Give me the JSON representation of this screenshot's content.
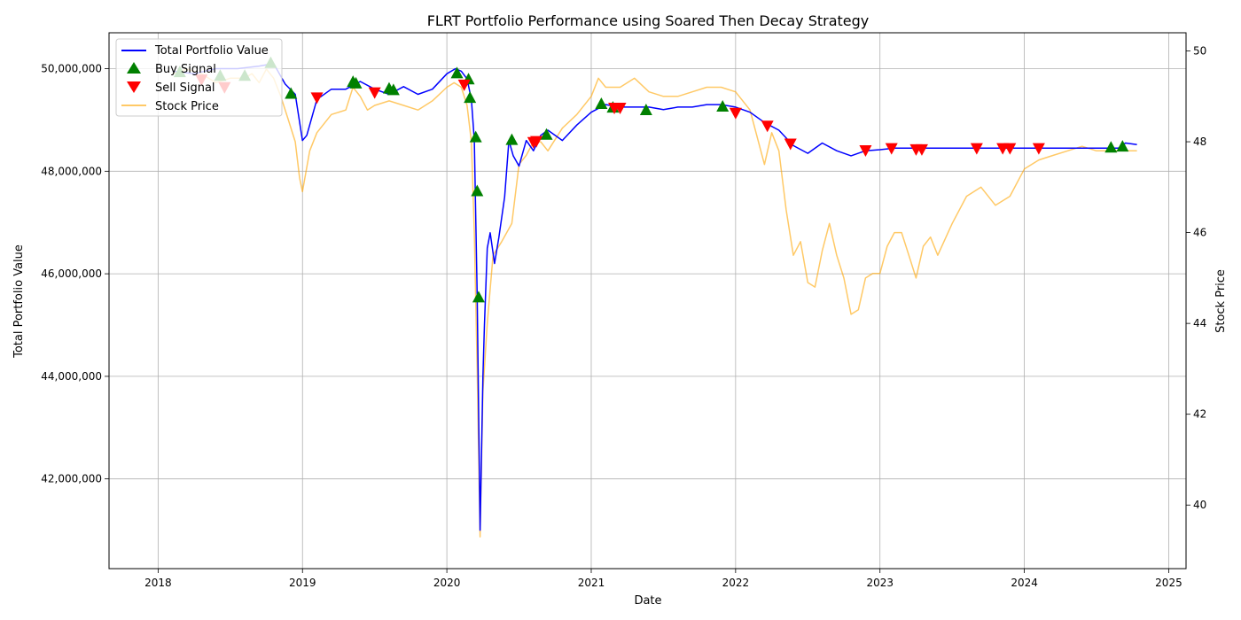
{
  "chart_data": {
    "type": "line",
    "title": "FLRT Portfolio Performance using Soared Then Decay Strategy",
    "xlabel": "Date",
    "ylabel": "Total Portfolio Value",
    "ylabel_right": "Stock Price",
    "xlim": [
      2017.66,
      2025.12
    ],
    "ylim": [
      40250000,
      50700000
    ],
    "ylim_right": [
      38.6,
      50.4
    ],
    "x_ticks": [
      2018,
      2019,
      2020,
      2021,
      2022,
      2023,
      2024,
      2025
    ],
    "x_tick_labels": [
      "2018",
      "2019",
      "2020",
      "2021",
      "2022",
      "2023",
      "2024",
      "2025"
    ],
    "y_ticks": [
      42000000,
      44000000,
      46000000,
      48000000,
      50000000
    ],
    "y_tick_labels": [
      "42,000,000",
      "44,000,000",
      "46,000,000",
      "48,000,000",
      "50,000,000"
    ],
    "y_ticks_right": [
      40,
      42,
      44,
      46,
      48,
      50
    ],
    "y_tick_labels_right": [
      "40",
      "42",
      "44",
      "46",
      "48",
      "50"
    ],
    "grid": true,
    "legend_position": "top-left",
    "legend": [
      "Total Portfolio Value",
      "Buy Signal",
      "Sell Signal",
      "Stock Price"
    ],
    "colors": {
      "portfolio": "#0000ff",
      "buy": "#008000",
      "sell": "#ff0000",
      "stock": "#ffa500"
    },
    "series": [
      {
        "name": "Total Portfolio Value",
        "axis": "left",
        "x": [
          2018.1,
          2018.25,
          2018.4,
          2018.55,
          2018.7,
          2018.8,
          2018.88,
          2018.95,
          2019.0,
          2019.03,
          2019.1,
          2019.2,
          2019.3,
          2019.4,
          2019.5,
          2019.6,
          2019.7,
          2019.8,
          2019.9,
          2020.0,
          2020.06,
          2020.1,
          2020.14,
          2020.17,
          2020.19,
          2020.21,
          2020.23,
          2020.24,
          2020.25,
          2020.26,
          2020.28,
          2020.3,
          2020.33,
          2020.36,
          2020.4,
          2020.43,
          2020.46,
          2020.5,
          2020.55,
          2020.6,
          2020.65,
          2020.7,
          2020.8,
          2020.9,
          2021.0,
          2021.1,
          2021.2,
          2021.3,
          2021.4,
          2021.5,
          2021.6,
          2021.7,
          2021.8,
          2021.9,
          2022.0,
          2022.1,
          2022.2,
          2022.3,
          2022.4,
          2022.5,
          2022.6,
          2022.7,
          2022.8,
          2022.9,
          2023.0,
          2023.1,
          2023.3,
          2023.5,
          2023.7,
          2023.9,
          2024.1,
          2024.3,
          2024.5,
          2024.6,
          2024.65,
          2024.7,
          2024.78
        ],
        "values": [
          49950000,
          49900000,
          50000000,
          50000000,
          50050000,
          50100000,
          49700000,
          49500000,
          48600000,
          48700000,
          49400000,
          49600000,
          49600000,
          49750000,
          49600000,
          49500000,
          49650000,
          49500000,
          49600000,
          49900000,
          50000000,
          49950000,
          49800000,
          49400000,
          48600000,
          45600000,
          41000000,
          42500000,
          44000000,
          45000000,
          46500000,
          46800000,
          46200000,
          46700000,
          47500000,
          48600000,
          48300000,
          48100000,
          48600000,
          48400000,
          48700000,
          48800000,
          48600000,
          48900000,
          49150000,
          49300000,
          49250000,
          49250000,
          49250000,
          49200000,
          49250000,
          49250000,
          49300000,
          49300000,
          49250000,
          49150000,
          48950000,
          48800000,
          48500000,
          48350000,
          48550000,
          48400000,
          48300000,
          48400000,
          48420000,
          48450000,
          48450000,
          48450000,
          48450000,
          48450000,
          48450000,
          48450000,
          48450000,
          48450000,
          48450000,
          48550000,
          48520000
        ]
      },
      {
        "name": "Stock Price",
        "axis": "right",
        "x": [
          2018.1,
          2018.2,
          2018.3,
          2018.4,
          2018.5,
          2018.6,
          2018.65,
          2018.7,
          2018.75,
          2018.8,
          2018.85,
          2018.9,
          2018.95,
          2018.98,
          2019.0,
          2019.05,
          2019.1,
          2019.2,
          2019.3,
          2019.35,
          2019.4,
          2019.45,
          2019.5,
          2019.6,
          2019.7,
          2019.8,
          2019.9,
          2020.0,
          2020.05,
          2020.1,
          2020.14,
          2020.17,
          2020.19,
          2020.21,
          2020.23,
          2020.25,
          2020.28,
          2020.32,
          2020.38,
          2020.45,
          2020.5,
          2020.55,
          2020.6,
          2020.65,
          2020.7,
          2020.8,
          2020.9,
          2021.0,
          2021.05,
          2021.1,
          2021.2,
          2021.3,
          2021.4,
          2021.5,
          2021.6,
          2021.7,
          2021.8,
          2021.9,
          2022.0,
          2022.1,
          2022.2,
          2022.25,
          2022.3,
          2022.35,
          2022.4,
          2022.45,
          2022.5,
          2022.55,
          2022.6,
          2022.65,
          2022.7,
          2022.75,
          2022.8,
          2022.85,
          2022.9,
          2022.95,
          2023.0,
          2023.05,
          2023.1,
          2023.15,
          2023.2,
          2023.25,
          2023.3,
          2023.35,
          2023.4,
          2023.5,
          2023.6,
          2023.7,
          2023.8,
          2023.9,
          2024.0,
          2024.1,
          2024.2,
          2024.3,
          2024.4,
          2024.5,
          2024.6,
          2024.7,
          2024.78
        ],
        "values": [
          49.5,
          49.6,
          49.5,
          49.3,
          49.4,
          49.4,
          49.5,
          49.3,
          49.6,
          49.4,
          49.0,
          48.5,
          48.0,
          47.2,
          46.9,
          47.8,
          48.2,
          48.6,
          48.7,
          49.2,
          49.0,
          48.7,
          48.8,
          48.9,
          48.8,
          48.7,
          48.9,
          49.2,
          49.3,
          49.2,
          48.8,
          48.0,
          46.0,
          43.0,
          39.3,
          42.5,
          44.0,
          45.5,
          45.8,
          46.2,
          47.5,
          47.7,
          48.0,
          48.0,
          47.8,
          48.3,
          48.6,
          49.0,
          49.4,
          49.2,
          49.2,
          49.4,
          49.1,
          49.0,
          49.0,
          49.1,
          49.2,
          49.2,
          49.1,
          48.7,
          47.5,
          48.2,
          47.8,
          46.5,
          45.5,
          45.8,
          44.9,
          44.8,
          45.6,
          46.2,
          45.5,
          45.0,
          44.2,
          44.3,
          45.0,
          45.1,
          45.1,
          45.7,
          46.0,
          46.0,
          45.5,
          45.0,
          45.7,
          45.9,
          45.5,
          46.2,
          46.8,
          47.0,
          46.6,
          46.8,
          47.4,
          47.6,
          47.7,
          47.8,
          47.9,
          47.8,
          47.8,
          47.8,
          47.8
        ]
      }
    ],
    "buy_signals": [
      {
        "x": 2018.15,
        "y": 49920000
      },
      {
        "x": 2018.43,
        "y": 49850000
      },
      {
        "x": 2018.6,
        "y": 49850000
      },
      {
        "x": 2018.78,
        "y": 50100000
      },
      {
        "x": 2018.92,
        "y": 49500000
      },
      {
        "x": 2019.35,
        "y": 49730000
      },
      {
        "x": 2019.37,
        "y": 49700000
      },
      {
        "x": 2019.6,
        "y": 49600000
      },
      {
        "x": 2019.63,
        "y": 49570000
      },
      {
        "x": 2020.07,
        "y": 49900000
      },
      {
        "x": 2020.15,
        "y": 49780000
      },
      {
        "x": 2020.16,
        "y": 49420000
      },
      {
        "x": 2020.2,
        "y": 48650000
      },
      {
        "x": 2020.21,
        "y": 47600000
      },
      {
        "x": 2020.22,
        "y": 45530000
      },
      {
        "x": 2020.45,
        "y": 48600000
      },
      {
        "x": 2020.69,
        "y": 48700000
      },
      {
        "x": 2021.07,
        "y": 49300000
      },
      {
        "x": 2021.15,
        "y": 49230000
      },
      {
        "x": 2021.38,
        "y": 49180000
      },
      {
        "x": 2021.91,
        "y": 49250000
      },
      {
        "x": 2024.6,
        "y": 48450000
      },
      {
        "x": 2024.68,
        "y": 48470000
      }
    ],
    "sell_signals": [
      {
        "x": 2018.3,
        "y": 49800000
      },
      {
        "x": 2018.46,
        "y": 49650000
      },
      {
        "x": 2019.1,
        "y": 49450000
      },
      {
        "x": 2019.5,
        "y": 49550000
      },
      {
        "x": 2020.12,
        "y": 49700000
      },
      {
        "x": 2020.6,
        "y": 48580000
      },
      {
        "x": 2020.62,
        "y": 48600000
      },
      {
        "x": 2021.16,
        "y": 49250000
      },
      {
        "x": 2021.2,
        "y": 49250000
      },
      {
        "x": 2022.0,
        "y": 49150000
      },
      {
        "x": 2022.22,
        "y": 48900000
      },
      {
        "x": 2022.38,
        "y": 48550000
      },
      {
        "x": 2022.9,
        "y": 48420000
      },
      {
        "x": 2023.08,
        "y": 48460000
      },
      {
        "x": 2023.25,
        "y": 48440000
      },
      {
        "x": 2023.29,
        "y": 48440000
      },
      {
        "x": 2023.67,
        "y": 48460000
      },
      {
        "x": 2023.85,
        "y": 48460000
      },
      {
        "x": 2023.9,
        "y": 48460000
      },
      {
        "x": 2024.1,
        "y": 48460000
      }
    ]
  }
}
